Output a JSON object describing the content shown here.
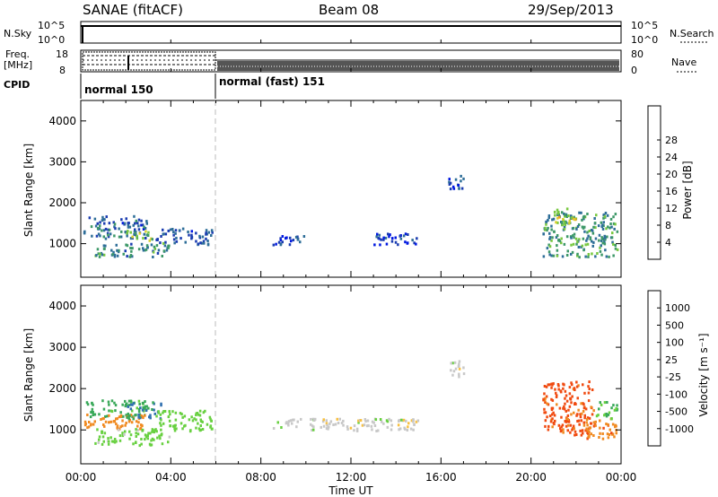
{
  "header": {
    "title_left": "SANAE (fitACF)",
    "title_center": "Beam 08",
    "title_right": "29/Sep/2013"
  },
  "nsky": {
    "label": "N.Sky",
    "ticks": [
      "10^5",
      "10^0"
    ],
    "right_ticks": [
      "10^5",
      "10^0"
    ],
    "right_label": "N.Search"
  },
  "freq": {
    "label_line1": "Freq.",
    "label_line2": "[MHz]",
    "ticks": [
      "18",
      "8"
    ],
    "right_ticks": [
      "80",
      "0"
    ],
    "right_label": "Nave"
  },
  "cpid": {
    "label": "CPID",
    "segments": [
      {
        "label": "normal 150",
        "start_hour": 0,
        "end_hour": 6
      },
      {
        "label": "normal (fast) 151",
        "start_hour": 6,
        "end_hour": 24
      }
    ]
  },
  "colors": {
    "power": [
      "#0018e0",
      "#1a3cb0",
      "#2e6e98",
      "#3d9868",
      "#78c840",
      "#d8d030",
      "#f0a020",
      "#f06010",
      "#e81010"
    ],
    "velocity": [
      "#e81010",
      "#f04a10",
      "#f08a20",
      "#f8c040",
      "#c8c8c8",
      "#68d040",
      "#38a858",
      "#3070b0",
      "#2040c8"
    ]
  },
  "chart_data": [
    {
      "type": "heatmap",
      "title": "",
      "xlabel": "Time UT",
      "ylabel": "Slant Range [km]",
      "xlim_hours": [
        0,
        24
      ],
      "ylim_km": [
        180,
        4500
      ],
      "x_ticks": [
        "00:00",
        "04:00",
        "08:00",
        "12:00",
        "16:00",
        "20:00",
        "00:00"
      ],
      "y_ticks": [
        "1000",
        "2000",
        "3000",
        "4000"
      ],
      "colorbar": {
        "label": "Power [dB]",
        "ticks": [
          "4",
          "8",
          "12",
          "16",
          "20",
          "24",
          "28"
        ],
        "range": [
          0,
          30
        ]
      },
      "blobs": [
        {
          "t0": 0.1,
          "t1": 2.9,
          "r0": 1150,
          "r1": 1700,
          "value": 7
        },
        {
          "t0": 0.6,
          "t1": 3.9,
          "r0": 700,
          "r1": 1050,
          "value": 10
        },
        {
          "t0": 2.0,
          "t1": 3.2,
          "r0": 1100,
          "r1": 1350,
          "value": 16
        },
        {
          "t0": 3.3,
          "t1": 5.8,
          "r0": 1000,
          "r1": 1400,
          "value": 6
        },
        {
          "t0": 8.5,
          "t1": 10.0,
          "r0": 1000,
          "r1": 1250,
          "value": 5
        },
        {
          "t0": 13.0,
          "t1": 15.0,
          "r0": 1000,
          "r1": 1300,
          "value": 4
        },
        {
          "t0": 16.3,
          "t1": 17.0,
          "r0": 2300,
          "r1": 2700,
          "value": 6
        },
        {
          "t0": 20.5,
          "t1": 23.8,
          "r0": 700,
          "r1": 1800,
          "value": 11
        },
        {
          "t0": 21.0,
          "t1": 22.0,
          "r0": 1500,
          "r1": 1900,
          "value": 17
        }
      ]
    },
    {
      "type": "heatmap",
      "title": "",
      "xlabel": "Time UT",
      "ylabel": "Slant Range [km]",
      "xlim_hours": [
        0,
        24
      ],
      "ylim_km": [
        180,
        4500
      ],
      "x_ticks": [
        "00:00",
        "04:00",
        "08:00",
        "12:00",
        "16:00",
        "20:00",
        "00:00"
      ],
      "y_ticks": [
        "1000",
        "2000",
        "3000",
        "4000"
      ],
      "colorbar": {
        "label": "Velocity [m s⁻¹]",
        "ticks": [
          "1000",
          "500",
          "100",
          "25",
          "-25",
          "-100",
          "-500",
          "-1000"
        ]
      },
      "blobs": [
        {
          "t0": 0.1,
          "t1": 2.9,
          "r0": 1350,
          "r1": 1750,
          "value": 200
        },
        {
          "t0": 0.1,
          "t1": 3.0,
          "r0": 1050,
          "r1": 1400,
          "value": -300
        },
        {
          "t0": 0.6,
          "t1": 3.9,
          "r0": 650,
          "r1": 1050,
          "value": 50
        },
        {
          "t0": 2.0,
          "t1": 3.6,
          "r0": 1300,
          "r1": 1700,
          "value": 500
        },
        {
          "t0": 3.3,
          "t1": 5.8,
          "r0": 1000,
          "r1": 1500,
          "value": 60
        },
        {
          "t0": 8.5,
          "t1": 15.0,
          "r0": 1000,
          "r1": 1300,
          "value": 0
        },
        {
          "t0": 16.3,
          "t1": 17.0,
          "r0": 2300,
          "r1": 2700,
          "value": 0
        },
        {
          "t0": 20.5,
          "t1": 22.8,
          "r0": 900,
          "r1": 2200,
          "value": -600
        },
        {
          "t0": 22.3,
          "t1": 23.8,
          "r0": 800,
          "r1": 1300,
          "value": -400
        },
        {
          "t0": 22.8,
          "t1": 23.8,
          "r0": 1300,
          "r1": 1700,
          "value": 100
        }
      ]
    }
  ]
}
